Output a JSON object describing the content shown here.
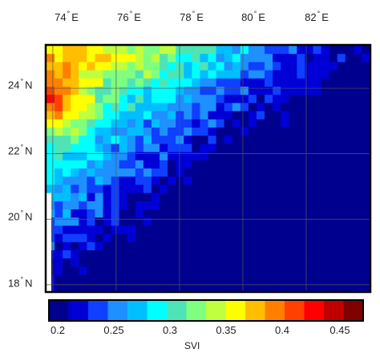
{
  "map": {
    "lon_labels": [
      {
        "value": 74,
        "deg": "°",
        "hem": "E"
      },
      {
        "value": 76,
        "deg": "°",
        "hem": "E"
      },
      {
        "value": 78,
        "deg": "°",
        "hem": "E"
      },
      {
        "value": 80,
        "deg": "°",
        "hem": "E"
      },
      {
        "value": 82,
        "deg": "°",
        "hem": "E"
      }
    ],
    "lat_labels": [
      {
        "value": 24,
        "deg": "°",
        "hem": "N"
      },
      {
        "value": 22,
        "deg": "°",
        "hem": "N"
      },
      {
        "value": 20,
        "deg": "°",
        "hem": "N"
      },
      {
        "value": 18,
        "deg": "°",
        "hem": "N"
      }
    ],
    "extent": {
      "lon": [
        73.8,
        84.0
      ],
      "lat": [
        17.8,
        25.3
      ]
    },
    "grid": true,
    "field_cells": {
      "cols": 40,
      "rows": 30
    }
  },
  "colorbar": {
    "title": "SVI",
    "range": [
      0.19,
      0.47
    ],
    "ticks": [
      "0.2",
      "0.25",
      "0.3",
      "0.35",
      "0.4",
      "0.45"
    ],
    "tick_values": [
      0.2,
      0.25,
      0.3,
      0.35,
      0.4,
      0.45
    ],
    "colors": [
      "#00008f",
      "#0000d6",
      "#0f3fff",
      "#1e90ff",
      "#00bfff",
      "#00ffff",
      "#4fe4b5",
      "#7fff7f",
      "#bfff40",
      "#ffff00",
      "#ffbf00",
      "#ff8000",
      "#ff4000",
      "#ff0000",
      "#c00000",
      "#800000"
    ]
  }
}
